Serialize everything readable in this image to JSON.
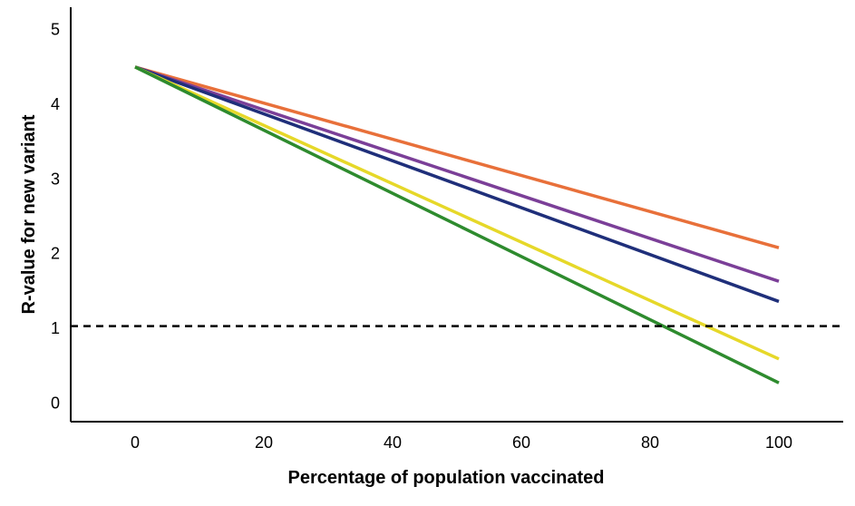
{
  "chart_data": {
    "type": "line",
    "title": "",
    "xlabel": "Percentage of population vaccinated",
    "ylabel": "R-value for new variant",
    "xlim": [
      -10,
      110
    ],
    "ylim": [
      -0.25,
      5.3
    ],
    "x_ticks": [
      0,
      20,
      40,
      60,
      80,
      100
    ],
    "y_ticks": [
      0,
      1,
      2,
      3,
      4,
      5
    ],
    "grid": false,
    "legend": "none",
    "series": [
      {
        "color": "#e8703a",
        "x": [
          0,
          100
        ],
        "y": [
          4.5,
          2.08
        ]
      },
      {
        "color": "#7b3f98",
        "x": [
          0,
          100
        ],
        "y": [
          4.5,
          1.63
        ]
      },
      {
        "color": "#1f2f7a",
        "x": [
          0,
          100
        ],
        "y": [
          4.5,
          1.36
        ]
      },
      {
        "color": "#e6d829",
        "x": [
          0,
          100
        ],
        "y": [
          4.5,
          0.59
        ]
      },
      {
        "color": "#2e8b2e",
        "x": [
          0,
          100
        ],
        "y": [
          4.5,
          0.27
        ]
      }
    ],
    "reference_line": {
      "y": 1.03,
      "style": "dashed",
      "color": "#000000"
    }
  }
}
